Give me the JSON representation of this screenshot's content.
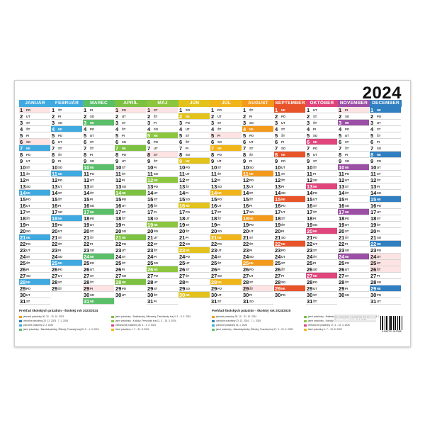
{
  "calendar": {
    "year": "2024",
    "weekdays": [
      "PO",
      "UT",
      "ST",
      "ŠT",
      "PI",
      "SO",
      "NE"
    ],
    "first_weekday_index": 0,
    "months": [
      {
        "name": "JANUÁR",
        "color": "#3fa9e0",
        "days": 31,
        "start": 0
      },
      {
        "name": "FEBRUÁR",
        "color": "#3fa9e0",
        "days": 29,
        "start": 3
      },
      {
        "name": "MAREC",
        "color": "#5bbf6a",
        "days": 31,
        "start": 4
      },
      {
        "name": "APRÍL",
        "color": "#7dc142",
        "days": 30,
        "start": 0
      },
      {
        "name": "MÁJ",
        "color": "#8cc63f",
        "days": 31,
        "start": 2
      },
      {
        "name": "JÚN",
        "color": "#e2c21b",
        "days": 30,
        "start": 5
      },
      {
        "name": "JÚL",
        "color": "#f1b51c",
        "days": 31,
        "start": 0
      },
      {
        "name": "AUGUST",
        "color": "#f39a1c",
        "days": 31,
        "start": 3
      },
      {
        "name": "SEPTEMBER",
        "color": "#e9532a",
        "days": 30,
        "start": 6
      },
      {
        "name": "OKTÓBER",
        "color": "#e0457b",
        "days": 31,
        "start": 1
      },
      {
        "name": "NOVEMBER",
        "color": "#9b4fa5",
        "days": 30,
        "start": 4
      },
      {
        "name": "DECEMBER",
        "color": "#2f7fc1",
        "days": 31,
        "start": 6
      }
    ]
  },
  "legend": {
    "title_left": "Prehľad školských prázdnin - školský rok 2023/2024",
    "title_right": "Prehľad školských prázdnin - školský rok 2024/2025",
    "items_left": [
      {
        "text": "jesenné prázdniny 30. 10. - 31. 10. 2023",
        "color": "#f39a1c"
      },
      {
        "text": "vianočné prázdniny 23. 12. 2023 - 7. 1. 2024",
        "color": "#2f7fc1"
      },
      {
        "text": "polročné prázdniny 2. 2. 2024",
        "color": "#3fa9e0"
      },
      {
        "text": "jarné prázdniny - Banskobystrický, Žilinský, Trnavský kraj 26. 2. - 1. 3. 2024",
        "color": "#5bbf6a"
      },
      {
        "text": "jarné prázdniny - Bratislavský, Nitriansky, Trenčiansky kraj 4. 3. - 8. 3. 2024",
        "color": "#7dc142"
      },
      {
        "text": "jarné prázdniny - Košický, Prešovský kraj 11. 3. - 15. 3. 2024",
        "color": "#8cc63f"
      },
      {
        "text": "veľkonočné prázdniny 28. 3. - 2. 4. 2024",
        "color": "#e0457b"
      },
      {
        "text": "letné prázdniny 1. 7. - 31. 8. 2024",
        "color": "#f1b51c"
      }
    ],
    "items_right": [
      {
        "text": "jesenné prázdniny 30. 10. - 31. 10. 2024",
        "color": "#f39a1c"
      },
      {
        "text": "vianočné prázdniny 23. 12. 2024 - 7. 1. 2025",
        "color": "#2f7fc1"
      },
      {
        "text": "polročné prázdniny 31. 1. 2025",
        "color": "#3fa9e0"
      },
      {
        "text": "jarné prázdniny - Banskobystrický, Žilinský, Trnavský kraj 17. 2. - 21. 2. 2025",
        "color": "#5bbf6a"
      },
      {
        "text": "jarné prázdniny - Bratislavský, Nitriansky, Trenčiansky kraj 24. 2. - 28. 2. 2025",
        "color": "#7dc142"
      },
      {
        "text": "jarné prázdniny - Košický, Prešovský kraj 3. 3. - 7. 3. 2025",
        "color": "#8cc63f"
      },
      {
        "text": "veľkonočné prázdniny 17. 4. - 22. 4. 2025",
        "color": "#e0457b"
      },
      {
        "text": "letné prázdniny 1. 7. - 31. 8. 2025",
        "color": "#f1b51c"
      }
    ]
  },
  "barcode": {
    "code": "8 590721 012345"
  },
  "holidays": [
    {
      "m": 0,
      "d": 1
    },
    {
      "m": 0,
      "d": 6
    },
    {
      "m": 2,
      "d": 29
    },
    {
      "m": 3,
      "d": 1
    },
    {
      "m": 4,
      "d": 1
    },
    {
      "m": 4,
      "d": 8
    },
    {
      "m": 6,
      "d": 5
    },
    {
      "m": 7,
      "d": 29
    },
    {
      "m": 8,
      "d": 1
    },
    {
      "m": 8,
      "d": 15
    },
    {
      "m": 10,
      "d": 1
    },
    {
      "m": 10,
      "d": 17
    },
    {
      "m": 11,
      "d": 24
    },
    {
      "m": 11,
      "d": 25
    },
    {
      "m": 11,
      "d": 26
    }
  ]
}
